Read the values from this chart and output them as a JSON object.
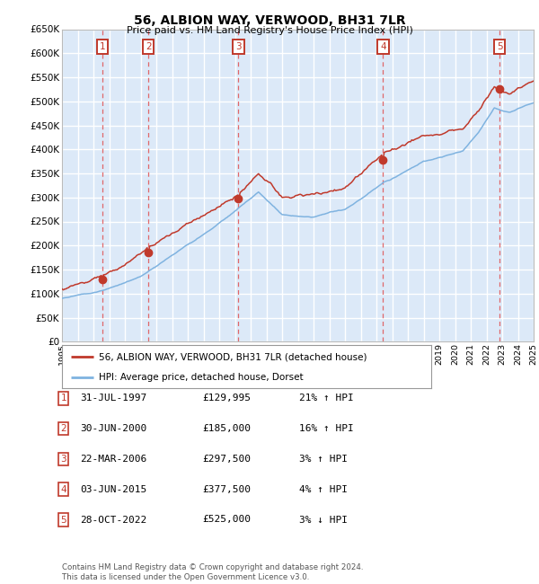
{
  "title": "56, ALBION WAY, VERWOOD, BH31 7LR",
  "subtitle": "Price paid vs. HM Land Registry's House Price Index (HPI)",
  "legend_line1": "56, ALBION WAY, VERWOOD, BH31 7LR (detached house)",
  "legend_line2": "HPI: Average price, detached house, Dorset",
  "footer_line1": "Contains HM Land Registry data © Crown copyright and database right 2024.",
  "footer_line2": "This data is licensed under the Open Government Licence v3.0.",
  "transactions": [
    {
      "num": 1,
      "date": "31-JUL-1997",
      "price": 129995,
      "pct": "21%",
      "dir": "↑"
    },
    {
      "num": 2,
      "date": "30-JUN-2000",
      "price": 185000,
      "pct": "16%",
      "dir": "↑"
    },
    {
      "num": 3,
      "date": "22-MAR-2006",
      "price": 297500,
      "pct": "3%",
      "dir": "↑"
    },
    {
      "num": 4,
      "date": "03-JUN-2015",
      "price": 377500,
      "pct": "4%",
      "dir": "↑"
    },
    {
      "num": 5,
      "date": "28-OCT-2022",
      "price": 525000,
      "pct": "3%",
      "dir": "↓"
    }
  ],
  "transaction_years": [
    1997.58,
    2000.5,
    2006.22,
    2015.42,
    2022.83
  ],
  "ylim": [
    0,
    650000
  ],
  "yticks": [
    0,
    50000,
    100000,
    150000,
    200000,
    250000,
    300000,
    350000,
    400000,
    450000,
    500000,
    550000,
    600000,
    650000
  ],
  "bg_color": "#dce9f8",
  "grid_color": "#ffffff",
  "red_line_color": "#c0392b",
  "blue_line_color": "#7fb3e0",
  "dashed_line_color": "#e05050",
  "marker_color": "#c0392b",
  "box_edge_color": "#c0392b",
  "title_color": "#000000",
  "start_year": 1995,
  "end_year": 2025
}
